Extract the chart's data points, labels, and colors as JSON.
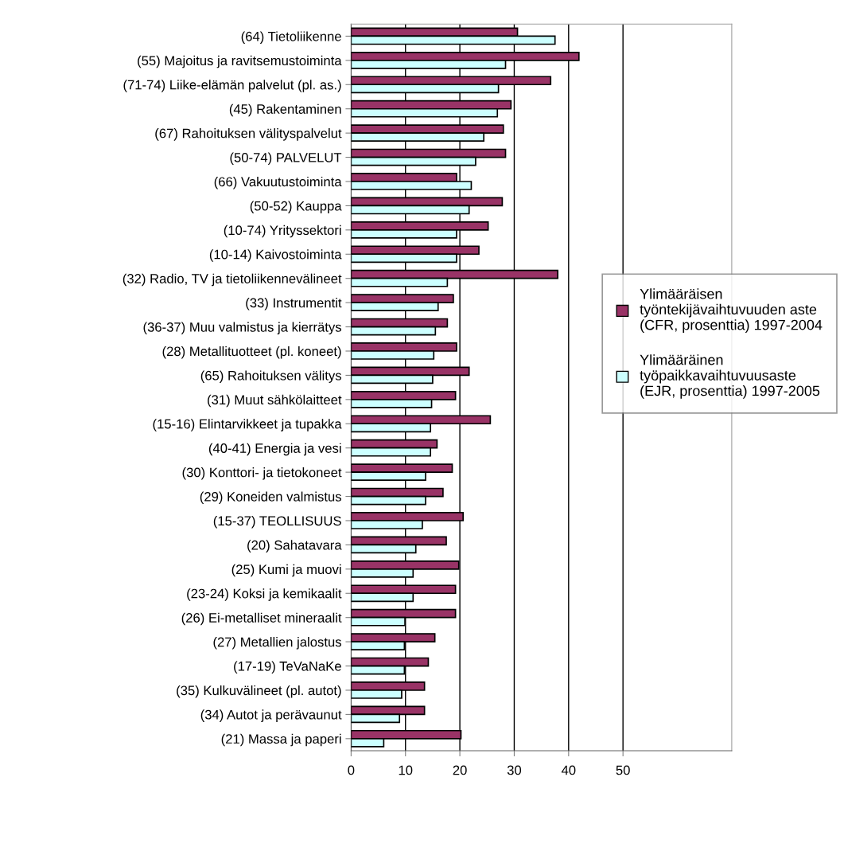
{
  "chart_data": {
    "type": "bar",
    "orientation": "horizontal",
    "categories": [
      "(64) Tietoliikenne",
      "(55) Majoitus ja ravitsemustoiminta",
      "(71-74) Liike-elämän palvelut (pl. as.)",
      "(45) Rakentaminen",
      "(67) Rahoituksen välityspalvelut",
      "(50-74) PALVELUT",
      "(66) Vakuutustoiminta",
      "(50-52) Kauppa",
      "(10-74) Yrityssektori",
      "(10-14) Kaivostoiminta",
      "(32) Radio, TV ja tietoliikennevälineet",
      "(33) Instrumentit",
      "(36-37) Muu valmistus ja kierrätys",
      "(28) Metallituotteet (pl. koneet)",
      "(65) Rahoituksen välitys",
      "(31) Muut sähkölaitteet",
      "(15-16) Elintarvikkeet ja tupakka",
      "(40-41) Energia ja vesi",
      "(30) Konttori- ja tietokoneet",
      "(29) Koneiden valmistus",
      "(15-37) TEOLLISUUS",
      "(20) Sahatavara",
      "(25) Kumi ja muovi",
      "(23-24) Koksi ja kemikaalit",
      "(26) Ei-metalliset mineraalit",
      "(27) Metallien jalostus",
      "(17-19) TeVaNaKe",
      "(35) Kulkuvälineet (pl. autot)",
      "(34) Autot ja perävaunut",
      "(21) Massa ja paperi"
    ],
    "series": [
      {
        "name": "Ylimääräisen\ntyöntekijävaihtuvuuden aste\n(CFR, prosenttia) 1997-2004",
        "color": "#993366",
        "values": [
          30.6,
          41.9,
          36.7,
          29.4,
          28.0,
          28.4,
          19.4,
          27.8,
          25.2,
          23.5,
          38.0,
          18.8,
          17.7,
          19.4,
          21.7,
          19.2,
          25.6,
          15.8,
          18.6,
          16.9,
          20.6,
          17.5,
          19.8,
          19.2,
          19.2,
          15.4,
          14.2,
          13.5,
          13.5,
          20.2
        ]
      },
      {
        "name": "Ylimääräinen\ntyöpaikkavaihtuvuusaste\n(EJR, prosenttia) 1997-2005",
        "color": "#ccffff",
        "values": [
          37.5,
          28.4,
          27.1,
          26.9,
          24.4,
          22.9,
          22.1,
          21.7,
          19.4,
          19.4,
          17.7,
          16.0,
          15.5,
          15.2,
          15.0,
          14.8,
          14.6,
          14.6,
          13.7,
          13.7,
          13.1,
          11.9,
          11.4,
          11.4,
          9.9,
          9.8,
          9.8,
          9.3,
          8.9,
          6.0
        ]
      }
    ],
    "xlim": [
      0,
      70
    ],
    "xticks": [
      0,
      10,
      20,
      30,
      40,
      50
    ],
    "grid": "x",
    "legend": "right"
  }
}
